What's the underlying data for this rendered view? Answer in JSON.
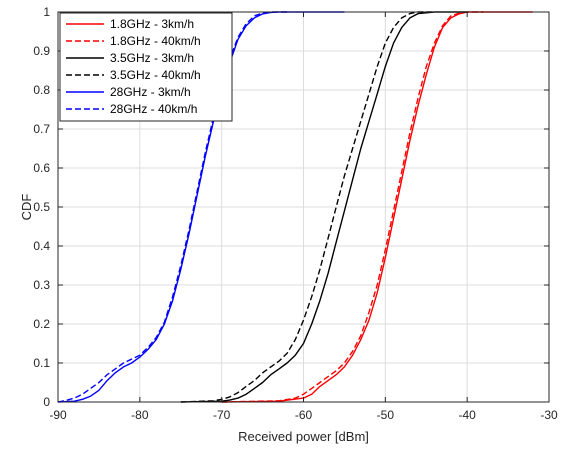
{
  "chart_data": {
    "type": "line",
    "xlabel": "Received power [dBm]",
    "ylabel": "CDF",
    "xlim": [
      -90,
      -30
    ],
    "ylim": [
      0,
      1
    ],
    "xticks": [
      -90,
      -80,
      -70,
      -60,
      -50,
      -40,
      -30
    ],
    "yticks": [
      0,
      0.1,
      0.2,
      0.3,
      0.4,
      0.5,
      0.6,
      0.7,
      0.8,
      0.9,
      1
    ],
    "grid": true,
    "legend_position": "top-left",
    "series": [
      {
        "name": "1.8GHz - 3km/h",
        "color": "#ff0000",
        "dash": "solid",
        "x": [
          -70,
          -63,
          -60,
          -59,
          -58,
          -57,
          -56,
          -55,
          -54,
          -53,
          -52,
          -51,
          -50,
          -49,
          -48,
          -47,
          -46,
          -45,
          -44,
          -43,
          -42,
          -41,
          -40,
          -38,
          -32
        ],
        "y": [
          0,
          0.002,
          0.01,
          0.02,
          0.04,
          0.055,
          0.07,
          0.09,
          0.12,
          0.16,
          0.21,
          0.28,
          0.37,
          0.47,
          0.57,
          0.67,
          0.76,
          0.84,
          0.91,
          0.96,
          0.985,
          0.995,
          1.0,
          1.0,
          1.0
        ]
      },
      {
        "name": "1.8GHz - 40km/h",
        "color": "#ff0000",
        "dash": "dashed",
        "x": [
          -70,
          -63,
          -61,
          -60,
          -59,
          -58,
          -57,
          -56,
          -55,
          -54,
          -53,
          -52,
          -51,
          -50,
          -49,
          -48,
          -47,
          -46,
          -45,
          -44,
          -43,
          -42,
          -41,
          -40,
          -38
        ],
        "y": [
          0,
          0.003,
          0.01,
          0.02,
          0.035,
          0.05,
          0.065,
          0.08,
          0.1,
          0.13,
          0.17,
          0.23,
          0.3,
          0.39,
          0.49,
          0.59,
          0.69,
          0.78,
          0.86,
          0.92,
          0.965,
          0.99,
          0.997,
          1.0,
          1.0
        ]
      },
      {
        "name": "3.5GHz - 3km/h",
        "color": "#000000",
        "dash": "solid",
        "x": [
          -75,
          -70,
          -69,
          -68,
          -67,
          -66,
          -65,
          -64,
          -63,
          -62,
          -61,
          -60,
          -59,
          -58,
          -57,
          -56,
          -55,
          -54,
          -53,
          -52,
          -51,
          -50,
          -49,
          -48,
          -47,
          -46,
          -44,
          -40
        ],
        "y": [
          0,
          0.002,
          0.005,
          0.01,
          0.02,
          0.035,
          0.05,
          0.07,
          0.085,
          0.1,
          0.12,
          0.15,
          0.2,
          0.26,
          0.33,
          0.41,
          0.49,
          0.57,
          0.65,
          0.72,
          0.79,
          0.86,
          0.92,
          0.96,
          0.985,
          0.996,
          1.0,
          1.0
        ]
      },
      {
        "name": "3.5GHz - 40km/h",
        "color": "#000000",
        "dash": "dashed",
        "x": [
          -75,
          -71,
          -70,
          -69,
          -68,
          -67,
          -66,
          -65,
          -64,
          -63,
          -62,
          -61,
          -60,
          -59,
          -58,
          -57,
          -56,
          -55,
          -54,
          -53,
          -52,
          -51,
          -50,
          -49,
          -48,
          -47,
          -46,
          -44
        ],
        "y": [
          0,
          0.003,
          0.007,
          0.013,
          0.024,
          0.04,
          0.055,
          0.075,
          0.09,
          0.105,
          0.125,
          0.16,
          0.21,
          0.27,
          0.34,
          0.42,
          0.5,
          0.58,
          0.65,
          0.72,
          0.79,
          0.86,
          0.92,
          0.96,
          0.985,
          0.996,
          1.0,
          1.0
        ]
      },
      {
        "name": "28GHz - 3km/h",
        "color": "#0000ff",
        "dash": "solid",
        "x": [
          -90,
          -88,
          -87,
          -86,
          -85,
          -84,
          -83,
          -82,
          -81,
          -80,
          -79,
          -78,
          -77,
          -76,
          -75,
          -74,
          -73,
          -72,
          -71,
          -70,
          -69,
          -68,
          -67,
          -66,
          -65,
          -64,
          -63,
          -62,
          -55
        ],
        "y": [
          0,
          0.002,
          0.007,
          0.015,
          0.03,
          0.055,
          0.075,
          0.09,
          0.1,
          0.115,
          0.135,
          0.16,
          0.2,
          0.26,
          0.34,
          0.43,
          0.53,
          0.63,
          0.72,
          0.8,
          0.87,
          0.93,
          0.965,
          0.985,
          0.995,
          0.999,
          1.0,
          1.0,
          1.0
        ]
      },
      {
        "name": "28GHz - 40km/h",
        "color": "#0000ff",
        "dash": "dashed",
        "x": [
          -90,
          -89,
          -88,
          -87,
          -86,
          -85,
          -84,
          -83,
          -82,
          -81,
          -80,
          -79,
          -78,
          -77,
          -76,
          -75,
          -74,
          -73,
          -72,
          -71,
          -70,
          -69,
          -68,
          -67,
          -66,
          -65,
          -64,
          -63,
          -62
        ],
        "y": [
          0,
          0.004,
          0.01,
          0.02,
          0.035,
          0.05,
          0.07,
          0.085,
          0.1,
          0.11,
          0.12,
          0.14,
          0.165,
          0.205,
          0.27,
          0.35,
          0.44,
          0.54,
          0.64,
          0.73,
          0.81,
          0.88,
          0.935,
          0.97,
          0.99,
          0.997,
          1.0,
          1.0,
          1.0
        ]
      }
    ]
  }
}
